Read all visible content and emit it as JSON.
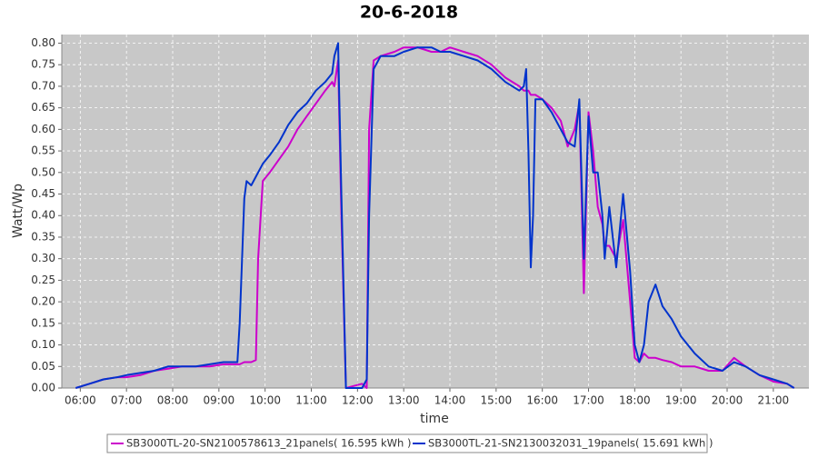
{
  "chart_data": {
    "type": "line",
    "title": "20-6-2018",
    "x_label": "time",
    "y_label": "Watt/Wp",
    "x": [
      5.9,
      6.2,
      6.5,
      6.8,
      7.0,
      7.3,
      7.6,
      7.9,
      8.2,
      8.5,
      8.8,
      9.1,
      9.4,
      9.45,
      9.55,
      9.6,
      9.7,
      9.8,
      9.85,
      9.95,
      10.1,
      10.3,
      10.5,
      10.7,
      10.9,
      11.1,
      11.3,
      11.45,
      11.5,
      11.58,
      11.65,
      11.75,
      12.1,
      12.2,
      12.25,
      12.35,
      12.5,
      12.8,
      13.0,
      13.3,
      13.6,
      13.8,
      14.0,
      14.3,
      14.6,
      14.9,
      15.2,
      15.5,
      15.6,
      15.65,
      15.7,
      15.75,
      15.8,
      15.85,
      16.0,
      16.2,
      16.4,
      16.55,
      16.7,
      16.8,
      16.9,
      17.0,
      17.1,
      17.2,
      17.3,
      17.35,
      17.45,
      17.6,
      17.75,
      17.9,
      18.0,
      18.1,
      18.2,
      18.3,
      18.45,
      18.6,
      18.8,
      19.0,
      19.3,
      19.6,
      19.9,
      20.15,
      20.4,
      20.7,
      21.0,
      21.3,
      21.45
    ],
    "series": [
      {
        "name": "SB3000TL-20-SN2100578613_21panels( 16.595 kWh )",
        "color": "#cc00cc",
        "values": [
          0,
          0.01,
          0.02,
          0.025,
          0.025,
          0.03,
          0.04,
          0.045,
          0.05,
          0.05,
          0.05,
          0.055,
          0.055,
          0.055,
          0.06,
          0.06,
          0.06,
          0.065,
          0.3,
          0.48,
          0.5,
          0.53,
          0.56,
          0.6,
          0.63,
          0.66,
          0.69,
          0.71,
          0.7,
          0.76,
          0.4,
          0,
          0.01,
          0,
          0.6,
          0.76,
          0.77,
          0.78,
          0.79,
          0.79,
          0.78,
          0.78,
          0.79,
          0.78,
          0.77,
          0.75,
          0.72,
          0.7,
          0.69,
          0.69,
          0.69,
          0.68,
          0.68,
          0.68,
          0.67,
          0.65,
          0.62,
          0.56,
          0.6,
          0.66,
          0.22,
          0.64,
          0.55,
          0.42,
          0.38,
          0.33,
          0.33,
          0.3,
          0.39,
          0.2,
          0.07,
          0.06,
          0.08,
          0.07,
          0.07,
          0.065,
          0.06,
          0.05,
          0.05,
          0.04,
          0.04,
          0.07,
          0.05,
          0.03,
          0.015,
          0.01,
          0
        ]
      },
      {
        "name": "SB3000TL-21-SN2130032031_19panels( 15.691 kWh )",
        "color": "#0033cc",
        "values": [
          0,
          0.01,
          0.02,
          0.025,
          0.03,
          0.035,
          0.04,
          0.05,
          0.05,
          0.05,
          0.055,
          0.06,
          0.06,
          0.15,
          0.44,
          0.48,
          0.47,
          0.49,
          0.5,
          0.52,
          0.54,
          0.57,
          0.61,
          0.64,
          0.66,
          0.69,
          0.71,
          0.73,
          0.77,
          0.8,
          0.45,
          0,
          0,
          0.02,
          0.4,
          0.74,
          0.77,
          0.77,
          0.78,
          0.79,
          0.79,
          0.78,
          0.78,
          0.77,
          0.76,
          0.74,
          0.71,
          0.69,
          0.7,
          0.74,
          0.55,
          0.28,
          0.4,
          0.67,
          0.67,
          0.64,
          0.6,
          0.57,
          0.56,
          0.67,
          0.3,
          0.63,
          0.5,
          0.5,
          0.4,
          0.3,
          0.42,
          0.28,
          0.45,
          0.27,
          0.1,
          0.06,
          0.1,
          0.2,
          0.24,
          0.19,
          0.16,
          0.12,
          0.08,
          0.05,
          0.04,
          0.06,
          0.05,
          0.03,
          0.02,
          0.01,
          0
        ]
      }
    ],
    "xlim": [
      5.6,
      21.77
    ],
    "xticks": [
      {
        "value": 6,
        "label": "06:00"
      },
      {
        "value": 7,
        "label": "07:00"
      },
      {
        "value": 8,
        "label": "08:00"
      },
      {
        "value": 9,
        "label": "09:00"
      },
      {
        "value": 10,
        "label": "10:00"
      },
      {
        "value": 11,
        "label": "11:00"
      },
      {
        "value": 12,
        "label": "12:00"
      },
      {
        "value": 13,
        "label": "13:00"
      },
      {
        "value": 14,
        "label": "14:00"
      },
      {
        "value": 15,
        "label": "15:00"
      },
      {
        "value": 16,
        "label": "16:00"
      },
      {
        "value": 17,
        "label": "17:00"
      },
      {
        "value": 18,
        "label": "18:00"
      },
      {
        "value": 19,
        "label": "19:00"
      },
      {
        "value": 20,
        "label": "20:00"
      },
      {
        "value": 21,
        "label": "21:00"
      }
    ],
    "ylim": [
      0,
      0.82
    ],
    "yticks": [
      {
        "value": 0,
        "label": "0.00"
      },
      0.05,
      {
        "value": 0.1,
        "label": "0.10"
      },
      0.15,
      {
        "value": 0.2,
        "label": "0.20"
      },
      0.25,
      {
        "value": 0.3,
        "label": "0.30"
      },
      0.35,
      {
        "value": 0.4,
        "label": "0.40"
      },
      0.45,
      {
        "value": 0.5,
        "label": "0.50"
      },
      0.55,
      {
        "value": 0.6,
        "label": "0.60"
      },
      0.65,
      {
        "value": 0.7,
        "label": "0.70"
      },
      0.75,
      {
        "value": 0.8,
        "label": "0.80"
      }
    ],
    "grid": true,
    "legend": "bottom"
  }
}
